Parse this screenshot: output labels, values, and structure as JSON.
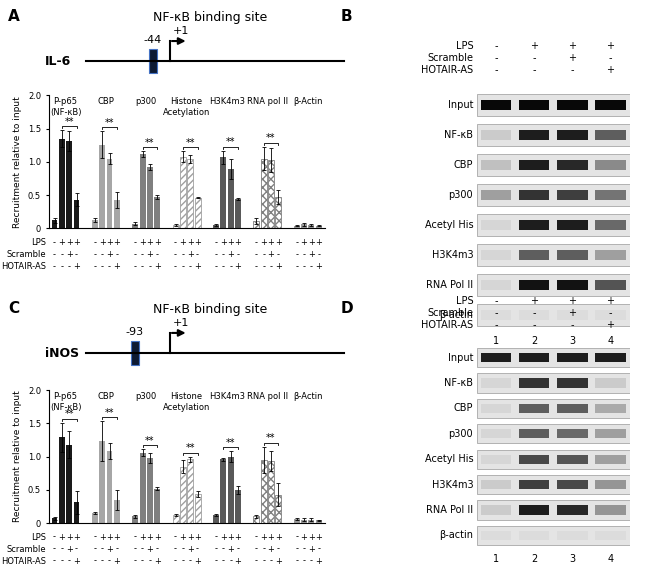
{
  "chart_data": [
    {
      "type": "bar",
      "y_label": "Recruitment relative to input",
      "ylim": [
        0,
        2
      ],
      "yticks": [
        0,
        0.5,
        {
          "value": 1.0,
          "label": "1.0"
        },
        1.5,
        {
          "value": 2.0,
          "label": "2.0"
        }
      ],
      "series": [
        {
          "name": "P-p65\n(NF-κB)",
          "color": "#1a1a1a",
          "values": [
            0.12,
            1.35,
            1.32,
            0.43
          ],
          "errors": [
            0.04,
            0.13,
            0.15,
            0.1
          ]
        },
        {
          "name": "CBP",
          "color": "#a6a6a6",
          "values": [
            0.13,
            1.26,
            1.05,
            0.42
          ],
          "errors": [
            0.03,
            0.2,
            0.08,
            0.12
          ]
        },
        {
          "name": "p300",
          "color": "#7f7f7f",
          "values": [
            0.07,
            1.12,
            0.92,
            0.47
          ],
          "errors": [
            0.02,
            0.04,
            0.05,
            0.03
          ]
        },
        {
          "name": "Histone\nAcetylation",
          "color": "#a0a0a0",
          "values": [
            0.05,
            1.08,
            1.04,
            0.46
          ],
          "errors": [
            0.01,
            0.08,
            0.06,
            0.01
          ]
        },
        {
          "name": "H3K4m3",
          "color": "#595959",
          "values": [
            0.05,
            1.07,
            0.89,
            0.44
          ],
          "errors": [
            0.01,
            0.1,
            0.15,
            0.02
          ]
        },
        {
          "name": "RNA pol II",
          "color": "#808080",
          "values": [
            0.11,
            1.05,
            1.03,
            0.47
          ],
          "errors": [
            0.05,
            0.18,
            0.18,
            0.1
          ]
        },
        {
          "name": "β-Actin",
          "color": "#999999",
          "values": [
            0.04,
            0.06,
            0.05,
            0.04
          ],
          "errors": [
            0.01,
            0.02,
            0.02,
            0.01
          ]
        }
      ],
      "conditions": [
        {
          "name": "LPS",
          "signs": [
            "-",
            "+",
            "+",
            "+"
          ]
        },
        {
          "name": "Scramble",
          "signs": [
            "-",
            "-",
            "+",
            "-"
          ]
        },
        {
          "name": "HOTAIR-AS",
          "signs": [
            "-",
            "-",
            "-",
            "+"
          ]
        }
      ],
      "significance": {
        "label": "**",
        "between": [
          1,
          3
        ],
        "series": [
          0,
          1,
          2,
          3,
          4,
          5
        ]
      }
    },
    {
      "type": "bar",
      "y_label": "Recruitment relative to input",
      "ylim": [
        0,
        2
      ],
      "yticks": [
        0,
        0.5,
        {
          "value": 1.0,
          "label": "1.0"
        },
        1.5,
        {
          "value": 2.0,
          "label": "2.0"
        }
      ],
      "series": [
        {
          "name": "P-p65\n(NF-κB)",
          "color": "#1a1a1a",
          "values": [
            0.07,
            1.29,
            1.18,
            0.31
          ],
          "errors": [
            0.02,
            0.22,
            0.2,
            0.18
          ]
        },
        {
          "name": "CBP",
          "color": "#a6a6a6",
          "values": [
            0.15,
            1.23,
            1.08,
            0.35
          ],
          "errors": [
            0.02,
            0.3,
            0.12,
            0.15
          ]
        },
        {
          "name": "p300",
          "color": "#7f7f7f",
          "values": [
            0.1,
            1.06,
            0.98,
            0.52
          ],
          "errors": [
            0.02,
            0.05,
            0.07,
            0.02
          ]
        },
        {
          "name": "Histone\nAcetylation",
          "color": "#a0a0a0",
          "values": [
            0.12,
            0.85,
            0.96,
            0.44
          ],
          "errors": [
            0.01,
            0.1,
            0.04,
            0.05
          ]
        },
        {
          "name": "H3K4m3",
          "color": "#595959",
          "values": [
            0.12,
            0.96,
            1.0,
            0.5
          ],
          "errors": [
            0.02,
            0.02,
            0.08,
            0.06
          ]
        },
        {
          "name": "RNA pol II",
          "color": "#808080",
          "values": [
            0.1,
            0.95,
            0.93,
            0.43
          ],
          "errors": [
            0.02,
            0.2,
            0.15,
            0.18
          ]
        },
        {
          "name": "β-Actin",
          "color": "#999999",
          "values": [
            0.06,
            0.05,
            0.05,
            0.04
          ],
          "errors": [
            0.02,
            0.02,
            0.02,
            0.01
          ]
        }
      ],
      "conditions": [
        {
          "name": "LPS",
          "signs": [
            "-",
            "+",
            "+",
            "+"
          ]
        },
        {
          "name": "Scramble",
          "signs": [
            "-",
            "-",
            "+",
            "-"
          ]
        },
        {
          "name": "HOTAIR-AS",
          "signs": [
            "-",
            "-",
            "-",
            "+"
          ]
        }
      ],
      "significance": {
        "label": "**",
        "between": [
          1,
          3
        ],
        "series": [
          0,
          1,
          2,
          3,
          4,
          5
        ]
      }
    }
  ],
  "diagrams": [
    {
      "panel": "A",
      "title": "NF-κB binding site",
      "gene": "IL-6",
      "site_position": -44,
      "tss": {
        "value": 1,
        "label": "+1"
      }
    },
    {
      "panel": "C",
      "title": "NF-κB binding site",
      "gene": "iNOS",
      "site_position": -93,
      "tss": {
        "value": 1,
        "label": "+1"
      }
    }
  ],
  "gels": [
    {
      "panel": "B",
      "conditions": [
        {
          "name": "LPS",
          "signs": [
            "-",
            "+",
            "+",
            "+"
          ]
        },
        {
          "name": "Scramble",
          "signs": [
            "-",
            "-",
            "+",
            "-"
          ]
        },
        {
          "name": "HOTAIR-AS",
          "signs": [
            "-",
            "-",
            "-",
            "+"
          ]
        }
      ],
      "lanes": [
        1,
        2,
        3,
        4
      ],
      "rows": [
        {
          "name": "Input",
          "intensity": [
            1.0,
            1.0,
            1.0,
            1.0
          ]
        },
        {
          "name": "NF-κB",
          "intensity": [
            0.1,
            0.9,
            0.9,
            0.6
          ]
        },
        {
          "name": "CBP",
          "intensity": [
            0.15,
            0.9,
            0.85,
            0.4
          ]
        },
        {
          "name": "p300",
          "intensity": [
            0.3,
            0.8,
            0.75,
            0.5
          ]
        },
        {
          "name": "Acetyl His",
          "intensity": [
            0.05,
            0.9,
            0.9,
            0.55
          ]
        },
        {
          "name": "H3K4m3",
          "intensity": [
            0.05,
            0.6,
            0.6,
            0.3
          ]
        },
        {
          "name": "RNA Pol II",
          "intensity": [
            0.05,
            0.95,
            0.95,
            0.65
          ]
        },
        {
          "name": "β-actin",
          "intensity": [
            0.02,
            0.02,
            0.02,
            0.02
          ]
        }
      ]
    },
    {
      "panel": "D",
      "conditions": [
        {
          "name": "LPS",
          "signs": [
            "-",
            "+",
            "+",
            "+"
          ]
        },
        {
          "name": "Scramble",
          "signs": [
            "-",
            "-",
            "+",
            "-"
          ]
        },
        {
          "name": "HOTAIR-AS",
          "signs": [
            "-",
            "-",
            "-",
            "+"
          ]
        }
      ],
      "lanes": [
        1,
        2,
        3,
        4
      ],
      "rows": [
        {
          "name": "Input",
          "intensity": [
            0.9,
            0.9,
            0.9,
            0.9
          ]
        },
        {
          "name": "NF-κB",
          "intensity": [
            0.05,
            0.8,
            0.8,
            0.1
          ]
        },
        {
          "name": "CBP",
          "intensity": [
            0.05,
            0.6,
            0.6,
            0.25
          ]
        },
        {
          "name": "p300",
          "intensity": [
            0.05,
            0.6,
            0.55,
            0.3
          ]
        },
        {
          "name": "Acetyl His",
          "intensity": [
            0.05,
            0.7,
            0.65,
            0.3
          ]
        },
        {
          "name": "H3K4m3",
          "intensity": [
            0.1,
            0.75,
            0.7,
            0.35
          ]
        },
        {
          "name": "RNA Pol II",
          "intensity": [
            0.1,
            0.9,
            0.85,
            0.35
          ]
        },
        {
          "name": "β-actin",
          "intensity": [
            0.02,
            0.02,
            0.02,
            0.02
          ]
        }
      ]
    }
  ]
}
